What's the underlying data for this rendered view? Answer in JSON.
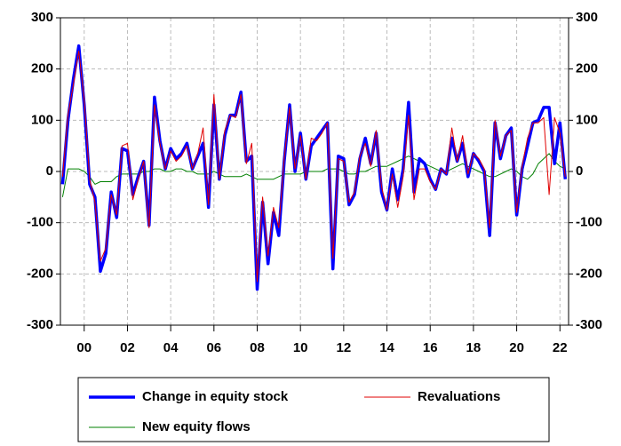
{
  "chart_data": {
    "type": "line",
    "x": [
      1999,
      1999.25,
      1999.5,
      1999.75,
      2000,
      2000.25,
      2000.5,
      2000.75,
      2001,
      2001.25,
      2001.5,
      2001.75,
      2002,
      2002.25,
      2002.5,
      2002.75,
      2003,
      2003.25,
      2003.5,
      2003.75,
      2004,
      2004.25,
      2004.5,
      2004.75,
      2005,
      2005.25,
      2005.5,
      2005.75,
      2006,
      2006.25,
      2006.5,
      2006.75,
      2007,
      2007.25,
      2007.5,
      2007.75,
      2008,
      2008.25,
      2008.5,
      2008.75,
      2009,
      2009.25,
      2009.5,
      2009.75,
      2010,
      2010.25,
      2010.5,
      2010.75,
      2011,
      2011.25,
      2011.5,
      2011.75,
      2012,
      2012.25,
      2012.5,
      2012.75,
      2013,
      2013.25,
      2013.5,
      2013.75,
      2014,
      2014.25,
      2014.5,
      2014.75,
      2015,
      2015.25,
      2015.5,
      2015.75,
      2016,
      2016.25,
      2016.5,
      2016.75,
      2017,
      2017.25,
      2017.5,
      2017.75,
      2018,
      2018.25,
      2018.5,
      2018.75,
      2019,
      2019.25,
      2019.5,
      2019.75,
      2020,
      2020.25,
      2020.5,
      2020.75,
      2021,
      2021.25,
      2021.5,
      2021.75,
      2022,
      2022.25
    ],
    "series": [
      {
        "name": "Change in equity stock",
        "color": "#0000ff",
        "width": 3.5,
        "values": [
          -25,
          100,
          180,
          245,
          130,
          -25,
          -50,
          -195,
          -160,
          -40,
          -90,
          45,
          40,
          -45,
          -10,
          20,
          -105,
          145,
          60,
          5,
          45,
          25,
          35,
          55,
          5,
          30,
          55,
          -70,
          130,
          -15,
          70,
          110,
          110,
          155,
          20,
          30,
          -230,
          -60,
          -180,
          -80,
          -125,
          20,
          130,
          0,
          75,
          -15,
          50,
          65,
          80,
          95,
          -190,
          30,
          25,
          -65,
          -45,
          25,
          65,
          15,
          75,
          -40,
          -75,
          5,
          -55,
          5,
          135,
          -40,
          25,
          15,
          -15,
          -35,
          5,
          -5,
          65,
          20,
          55,
          -10,
          35,
          20,
          0,
          -125,
          95,
          25,
          70,
          85,
          -85,
          5,
          50,
          95,
          100,
          125,
          125,
          15,
          95,
          -15
        ]
      },
      {
        "name": "Revaluations",
        "color": "#e00000",
        "width": 1,
        "values": [
          -10,
          110,
          170,
          235,
          140,
          -15,
          -60,
          -175,
          -150,
          -45,
          -85,
          50,
          55,
          -55,
          -15,
          20,
          -110,
          130,
          55,
          5,
          40,
          20,
          30,
          50,
          5,
          35,
          85,
          -65,
          150,
          -15,
          80,
          110,
          105,
          150,
          15,
          55,
          -215,
          -50,
          -165,
          -70,
          -110,
          25,
          125,
          5,
          70,
          -15,
          65,
          60,
          75,
          95,
          -170,
          25,
          20,
          -60,
          -40,
          30,
          55,
          10,
          80,
          -30,
          -75,
          -5,
          -70,
          -10,
          110,
          -55,
          5,
          5,
          -20,
          -35,
          5,
          -5,
          85,
          20,
          70,
          -5,
          35,
          25,
          5,
          -110,
          100,
          30,
          70,
          80,
          -80,
          10,
          65,
          95,
          95,
          105,
          -45,
          105,
          75,
          -10
        ]
      },
      {
        "name": "New equity flows",
        "color": "#008000",
        "width": 1,
        "values": [
          -50,
          5,
          5,
          5,
          0,
          -10,
          -25,
          -20,
          -20,
          -20,
          -10,
          -5,
          -5,
          -5,
          -5,
          0,
          0,
          5,
          5,
          0,
          0,
          5,
          5,
          0,
          0,
          -5,
          -5,
          -5,
          0,
          -5,
          -10,
          -10,
          -10,
          -10,
          -5,
          -10,
          -15,
          -15,
          -15,
          -15,
          -10,
          -5,
          -5,
          -5,
          -5,
          0,
          0,
          0,
          0,
          5,
          5,
          5,
          0,
          -5,
          -5,
          0,
          0,
          5,
          10,
          10,
          10,
          15,
          20,
          25,
          30,
          25,
          20,
          15,
          10,
          5,
          0,
          0,
          5,
          10,
          15,
          10,
          5,
          0,
          -5,
          -10,
          -10,
          -5,
          0,
          5,
          0,
          -10,
          -15,
          -5,
          15,
          25,
          35,
          20,
          10,
          5
        ]
      }
    ],
    "xlim": [
      1998.9,
      2022.4
    ],
    "xticks": [
      {
        "value": 2000,
        "label": "00"
      },
      {
        "value": 2002,
        "label": "02"
      },
      {
        "value": 2004,
        "label": "04"
      },
      {
        "value": 2006,
        "label": "06"
      },
      {
        "value": 2008,
        "label": "08"
      },
      {
        "value": 2010,
        "label": "10"
      },
      {
        "value": 2012,
        "label": "12"
      },
      {
        "value": 2014,
        "label": "14"
      },
      {
        "value": 2016,
        "label": "16"
      },
      {
        "value": 2018,
        "label": "18"
      },
      {
        "value": 2020,
        "label": "20"
      },
      {
        "value": 2022,
        "label": "22"
      }
    ],
    "ylim": [
      -300,
      300
    ],
    "yticks": [
      -300,
      -200,
      -100,
      0,
      100,
      200,
      300
    ],
    "y2lim": [
      -300,
      300
    ],
    "y2ticks": [
      -300,
      -200,
      -100,
      0,
      100,
      200,
      300
    ],
    "grid": true,
    "legend": "bottom"
  }
}
